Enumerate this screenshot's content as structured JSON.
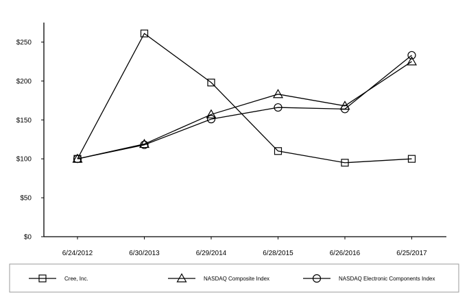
{
  "chart_data": {
    "type": "line",
    "title": "",
    "xlabel": "",
    "ylabel": "",
    "categories": [
      "6/24/2012",
      "6/30/2013",
      "6/29/2014",
      "6/28/2015",
      "6/26/2016",
      "6/25/2017"
    ],
    "ylim": [
      0,
      275
    ],
    "y_ticks": [
      0,
      50,
      100,
      150,
      200,
      250
    ],
    "y_tick_labels": [
      "$0",
      "$50",
      "$100",
      "$150",
      "$200",
      "$250"
    ],
    "grid": false,
    "legend_position": "bottom",
    "series": [
      {
        "name": "Cree, Inc.",
        "marker": "square",
        "values": [
          100,
          261,
          198,
          110,
          95,
          100
        ]
      },
      {
        "name": "NASDAQ Composite Index",
        "marker": "triangle",
        "values": [
          100,
          119,
          157,
          183,
          168,
          225
        ]
      },
      {
        "name": "NASDAQ Electronic Components Index",
        "marker": "circle",
        "values": [
          100,
          118,
          151,
          166,
          164,
          233
        ]
      }
    ]
  }
}
